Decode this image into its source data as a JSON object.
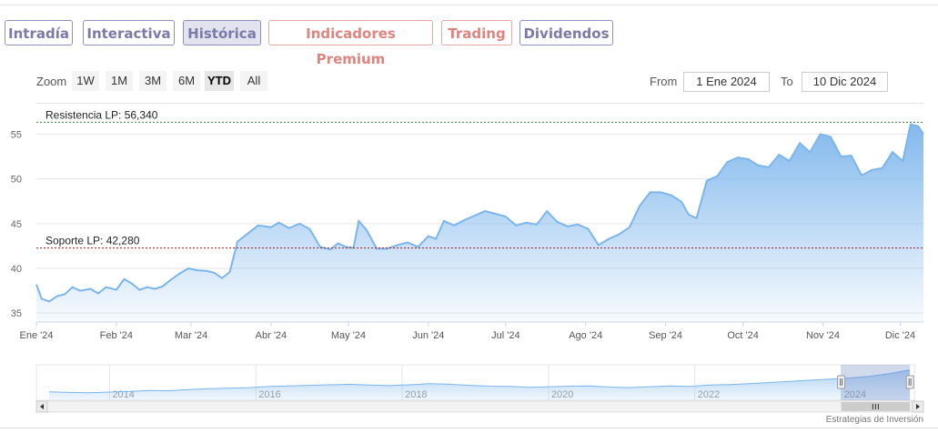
{
  "tabs": [
    {
      "label": "Intradía",
      "active": false,
      "premium": false
    },
    {
      "label": "Interactiva",
      "active": false,
      "premium": false
    },
    {
      "label": "Histórica",
      "active": true,
      "premium": false
    },
    {
      "label": "Indicadores Premium",
      "active": false,
      "premium": true
    },
    {
      "label": "Trading",
      "active": false,
      "premium": true
    },
    {
      "label": "Dividendos",
      "active": false,
      "premium": false
    }
  ],
  "toolbar": {
    "zoom_label": "Zoom",
    "zoom_buttons": [
      "1W",
      "1M",
      "3M",
      "6M",
      "YTD",
      "All"
    ],
    "zoom_selected": "YTD",
    "from_label": "From",
    "from_value": "1 Ene 2024",
    "to_label": "To",
    "to_value": "10 Dic 2024"
  },
  "colors": {
    "series_line": "#7cb5ec",
    "resistance_line": "#2e8b2e",
    "support_line": "#a01818",
    "tab_border": "#8f8fbf",
    "tab_text": "#7a7aa8",
    "premium_tab": "#e0837e"
  },
  "chart_data": {
    "type": "area",
    "x_start": "2024-01-01",
    "x_end": "2024-12-10",
    "xlabels": [
      "Ene '24",
      "Feb '24",
      "Mar '24",
      "Abr '24",
      "May '24",
      "Jun '24",
      "Jul '24",
      "Ago '24",
      "Sep '24",
      "Oct '24",
      "Nov '24",
      "Dic '24"
    ],
    "yticks": [
      35,
      40,
      45,
      50,
      55
    ],
    "ylim": [
      34,
      58
    ],
    "grid": true,
    "series": [
      {
        "points": [
          [
            "2024-01-01",
            38.2
          ],
          [
            "2024-01-03",
            36.6
          ],
          [
            "2024-01-06",
            36.3
          ],
          [
            "2024-01-09",
            36.9
          ],
          [
            "2024-01-12",
            37.1
          ],
          [
            "2024-01-15",
            37.9
          ],
          [
            "2024-01-18",
            37.5
          ],
          [
            "2024-01-22",
            37.7
          ],
          [
            "2024-01-25",
            37.2
          ],
          [
            "2024-01-28",
            37.9
          ],
          [
            "2024-02-01",
            37.6
          ],
          [
            "2024-02-04",
            38.8
          ],
          [
            "2024-02-07",
            38.3
          ],
          [
            "2024-02-10",
            37.6
          ],
          [
            "2024-02-13",
            37.9
          ],
          [
            "2024-02-16",
            37.7
          ],
          [
            "2024-02-19",
            38.0
          ],
          [
            "2024-02-22",
            38.7
          ],
          [
            "2024-02-26",
            39.5
          ],
          [
            "2024-02-29",
            40.0
          ],
          [
            "2024-03-03",
            39.8
          ],
          [
            "2024-03-07",
            39.7
          ],
          [
            "2024-03-10",
            39.5
          ],
          [
            "2024-03-13",
            38.9
          ],
          [
            "2024-03-16",
            39.6
          ],
          [
            "2024-03-19",
            43.0
          ],
          [
            "2024-03-23",
            43.9
          ],
          [
            "2024-03-27",
            44.8
          ],
          [
            "2024-04-01",
            44.6
          ],
          [
            "2024-04-04",
            45.1
          ],
          [
            "2024-04-08",
            44.5
          ],
          [
            "2024-04-12",
            45.0
          ],
          [
            "2024-04-16",
            44.4
          ],
          [
            "2024-04-20",
            42.4
          ],
          [
            "2024-04-24",
            42.1
          ],
          [
            "2024-04-27",
            42.8
          ],
          [
            "2024-04-30",
            42.4
          ],
          [
            "2024-05-03",
            42.3
          ],
          [
            "2024-05-05",
            45.3
          ],
          [
            "2024-05-08",
            44.3
          ],
          [
            "2024-05-12",
            42.2
          ],
          [
            "2024-05-16",
            42.2
          ],
          [
            "2024-05-20",
            42.6
          ],
          [
            "2024-05-24",
            42.9
          ],
          [
            "2024-05-28",
            42.4
          ],
          [
            "2024-06-01",
            43.6
          ],
          [
            "2024-06-04",
            43.3
          ],
          [
            "2024-06-07",
            45.3
          ],
          [
            "2024-06-11",
            44.8
          ],
          [
            "2024-06-15",
            45.4
          ],
          [
            "2024-06-19",
            45.9
          ],
          [
            "2024-06-23",
            46.4
          ],
          [
            "2024-06-27",
            46.1
          ],
          [
            "2024-07-01",
            45.8
          ],
          [
            "2024-07-05",
            44.8
          ],
          [
            "2024-07-09",
            45.1
          ],
          [
            "2024-07-13",
            44.9
          ],
          [
            "2024-07-17",
            46.4
          ],
          [
            "2024-07-21",
            45.2
          ],
          [
            "2024-07-25",
            44.7
          ],
          [
            "2024-07-29",
            44.9
          ],
          [
            "2024-08-02",
            44.4
          ],
          [
            "2024-08-06",
            42.6
          ],
          [
            "2024-08-10",
            43.3
          ],
          [
            "2024-08-14",
            43.8
          ],
          [
            "2024-08-18",
            44.6
          ],
          [
            "2024-08-22",
            47.0
          ],
          [
            "2024-08-26",
            48.5
          ],
          [
            "2024-08-30",
            48.5
          ],
          [
            "2024-09-03",
            48.2
          ],
          [
            "2024-09-07",
            47.5
          ],
          [
            "2024-09-10",
            46.0
          ],
          [
            "2024-09-13",
            45.6
          ],
          [
            "2024-09-17",
            49.8
          ],
          [
            "2024-09-21",
            50.3
          ],
          [
            "2024-09-25",
            51.9
          ],
          [
            "2024-09-29",
            52.4
          ],
          [
            "2024-10-03",
            52.2
          ],
          [
            "2024-10-07",
            51.5
          ],
          [
            "2024-10-11",
            51.3
          ],
          [
            "2024-10-15",
            52.7
          ],
          [
            "2024-10-19",
            52.0
          ],
          [
            "2024-10-23",
            54.0
          ],
          [
            "2024-10-27",
            53.0
          ],
          [
            "2024-10-31",
            55.0
          ],
          [
            "2024-11-04",
            54.7
          ],
          [
            "2024-11-08",
            52.5
          ],
          [
            "2024-11-12",
            52.6
          ],
          [
            "2024-11-16",
            50.4
          ],
          [
            "2024-11-20",
            51.0
          ],
          [
            "2024-11-24",
            51.2
          ],
          [
            "2024-11-28",
            53.0
          ],
          [
            "2024-12-02",
            52.0
          ],
          [
            "2024-12-05",
            56.1
          ],
          [
            "2024-12-08",
            55.9
          ],
          [
            "2024-12-10",
            55.0
          ]
        ]
      }
    ],
    "annotations": [
      {
        "label": "Resistencia LP: 56,340",
        "value": 56.34,
        "color": "#2e8b2e",
        "style": "dashed"
      },
      {
        "label": "Soporte LP: 42,280",
        "value": 42.28,
        "color": "#a01818",
        "style": "dashed"
      }
    ],
    "navigator": {
      "xlabels": [
        "2014",
        "2016",
        "2018",
        "2020",
        "2022",
        "2024"
      ],
      "range_start_year": 2013.0,
      "range_end_year": 2025.0,
      "selected_start_year": 2024.0,
      "selected_end_year": 2024.94,
      "profile": [
        0.17,
        0.15,
        0.14,
        0.16,
        0.18,
        0.22,
        0.21,
        0.25,
        0.28,
        0.3,
        0.32,
        0.36,
        0.38,
        0.4,
        0.42,
        0.44,
        0.41,
        0.39,
        0.42,
        0.46,
        0.44,
        0.4,
        0.37,
        0.36,
        0.33,
        0.35,
        0.37,
        0.38,
        0.34,
        0.32,
        0.35,
        0.38,
        0.36,
        0.41,
        0.43,
        0.46,
        0.5,
        0.54,
        0.58,
        0.62,
        0.66,
        0.72,
        0.82,
        0.95
      ]
    }
  },
  "credit": "Estrategias de Inversión"
}
